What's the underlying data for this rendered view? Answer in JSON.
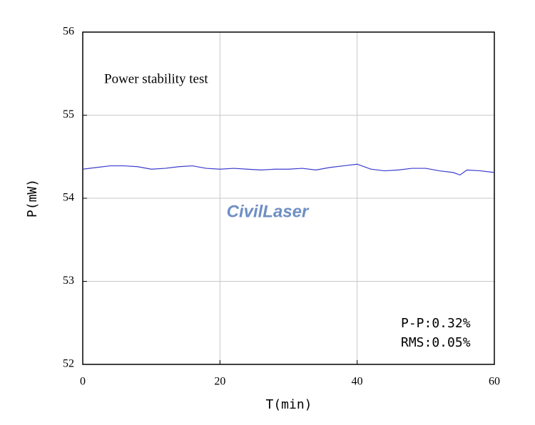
{
  "chart_data": {
    "type": "line",
    "title": "Power stability test",
    "x_label": "T(min)",
    "y_label": "P(mW)",
    "annotations": [
      "P-P:0.32%",
      "RMS:0.05%"
    ],
    "watermark": "CivilLaser",
    "x": [
      0,
      2,
      4,
      6,
      8,
      10,
      12,
      14,
      16,
      18,
      20,
      22,
      24,
      26,
      28,
      30,
      32,
      34,
      36,
      38,
      40,
      42,
      44,
      46,
      48,
      50,
      52,
      54,
      55,
      56,
      58,
      60
    ],
    "series": [
      {
        "name": "P",
        "color": "#3b3bd0",
        "values": [
          54.35,
          54.37,
          54.39,
          54.39,
          54.38,
          54.35,
          54.36,
          54.38,
          54.39,
          54.36,
          54.35,
          54.36,
          54.35,
          54.34,
          54.35,
          54.35,
          54.36,
          54.34,
          54.37,
          54.39,
          54.41,
          54.35,
          54.33,
          54.34,
          54.36,
          54.36,
          54.33,
          54.31,
          54.28,
          54.34,
          54.33,
          54.31
        ]
      }
    ],
    "xlim": [
      0,
      60
    ],
    "xticks": [
      0,
      20,
      40,
      60
    ],
    "ylim": [
      52,
      56
    ],
    "yticks": [
      52,
      53,
      54,
      55,
      56
    ],
    "grid": true
  }
}
